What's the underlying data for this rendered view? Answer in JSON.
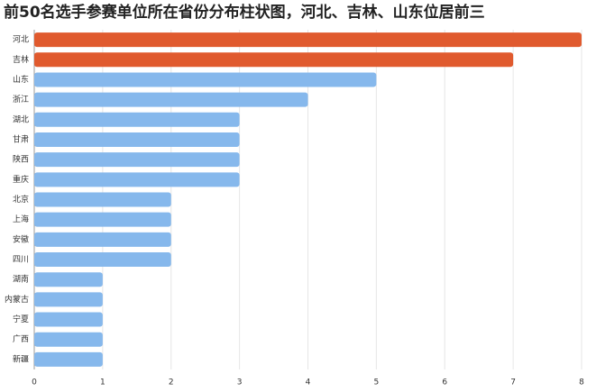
{
  "chart_data": {
    "type": "hbar",
    "title": "前50名选手参赛单位所在省份分布柱状图，河北、吉林、山东位居前三",
    "categories": [
      "河北",
      "吉林",
      "山东",
      "浙江",
      "湖北",
      "甘肃",
      "陕西",
      "重庆",
      "北京",
      "上海",
      "安徽",
      "四川",
      "湖南",
      "内蒙古",
      "宁夏",
      "广西",
      "新疆"
    ],
    "values": [
      8,
      7,
      5,
      4,
      3,
      3,
      3,
      3,
      2,
      2,
      2,
      2,
      1,
      1,
      1,
      1,
      1
    ],
    "colors": [
      "#e05a2e",
      "#e05a2e",
      "#86b8ec",
      "#86b8ec",
      "#86b8ec",
      "#86b8ec",
      "#86b8ec",
      "#86b8ec",
      "#86b8ec",
      "#86b8ec",
      "#86b8ec",
      "#86b8ec",
      "#86b8ec",
      "#86b8ec",
      "#86b8ec",
      "#86b8ec",
      "#86b8ec"
    ],
    "xlim": [
      0,
      8
    ],
    "xticks": [
      0,
      1,
      2,
      3,
      4,
      5,
      6,
      7,
      8
    ],
    "grid": true
  }
}
